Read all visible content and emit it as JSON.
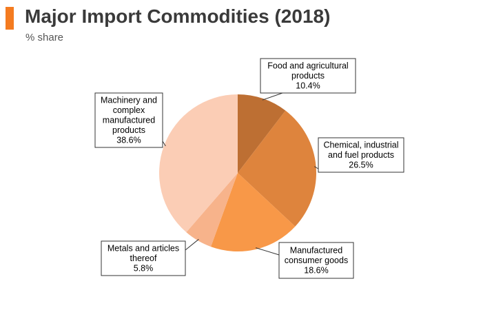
{
  "header": {
    "title": "Major Import Commodities (2018)",
    "subtitle": "% share",
    "accent_color": "#f47b20"
  },
  "chart_data": {
    "type": "pie",
    "title": "Major Import Commodities (2018)",
    "subtitle": "% share",
    "start_angle_deg": 0,
    "direction": "clockwise",
    "slices": [
      {
        "label_lines": [
          "Food and agricultural",
          "products"
        ],
        "value": 10.4,
        "value_label": "10.4%",
        "color": "#bd6f33"
      },
      {
        "label_lines": [
          "Chemical, industrial",
          "and fuel products"
        ],
        "value": 26.5,
        "value_label": "26.5%",
        "color": "#de843d"
      },
      {
        "label_lines": [
          "Manufactured",
          "consumer goods"
        ],
        "value": 18.6,
        "value_label": "18.6%",
        "color": "#f89848"
      },
      {
        "label_lines": [
          "Metals and articles",
          "thereof"
        ],
        "value": 5.8,
        "value_label": "5.8%",
        "color": "#f7b38b"
      },
      {
        "label_lines": [
          "Machinery and",
          "complex",
          "manufactured",
          "products"
        ],
        "value": 38.6,
        "value_label": "38.6%",
        "color": "#fbcdb5"
      }
    ]
  }
}
